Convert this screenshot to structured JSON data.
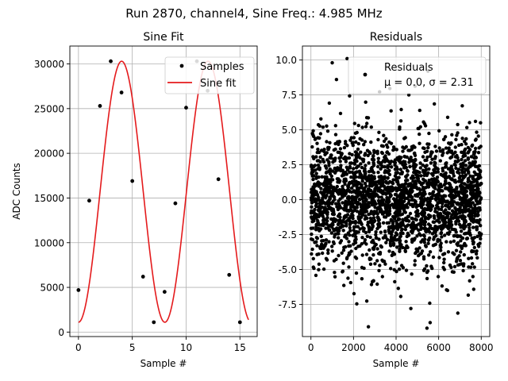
{
  "figure": {
    "suptitle": "Run 2870, channel4, Sine Freq.: 4.985 MHz"
  },
  "chart_data": [
    {
      "type": "line",
      "title": "Sine Fit",
      "xlabel": "Sample #",
      "ylabel": "ADC Counts",
      "xlim": [
        -0.8,
        16.6
      ],
      "ylim": [
        -500,
        32000
      ],
      "xticks": [
        0,
        5,
        10,
        15
      ],
      "yticks": [
        0,
        5000,
        10000,
        15000,
        20000,
        25000,
        30000
      ],
      "grid": true,
      "legend_position": "top-right",
      "series": [
        {
          "name": "Samples",
          "style": "markers",
          "color": "#000000",
          "x": [
            0,
            1,
            2,
            3,
            4,
            5,
            6,
            7,
            8,
            9,
            10,
            11,
            12,
            13,
            14,
            15
          ],
          "y": [
            4700,
            14700,
            25300,
            30300,
            26800,
            16900,
            6200,
            1100,
            4500,
            14400,
            25100,
            30300,
            27000,
            17100,
            6400,
            1100
          ]
        },
        {
          "name": "Sine fit",
          "style": "line",
          "color": "#e41a1c",
          "function": {
            "offset": 15700,
            "amplitude": 14600,
            "frequency_cycles_per_sample": 0.1246,
            "phase_rad": -1.57,
            "x_range": [
              0,
              15.8
            ]
          }
        }
      ]
    },
    {
      "type": "scatter",
      "title": "Residuals",
      "xlabel": "Sample #",
      "ylabel": "",
      "xlim": [
        -400,
        8400
      ],
      "ylim": [
        -9.8,
        11.0
      ],
      "xticks": [
        0,
        2000,
        4000,
        6000,
        8000
      ],
      "yticks": [
        -7.5,
        -5.0,
        -2.5,
        0.0,
        2.5,
        5.0,
        7.5,
        10.0
      ],
      "grid": true,
      "legend_position": "top-right",
      "series": [
        {
          "name": "Residuals",
          "legend_line2": "μ = 0.0, σ = 2.31",
          "color": "#000000",
          "n_points": 8000,
          "mean": 0.0,
          "std": 2.31,
          "x_range": [
            0,
            8000
          ],
          "notable_points": [
            {
              "x": 1000,
              "y": 9.8
            },
            {
              "x": 1200,
              "y": 8.6
            },
            {
              "x": 1700,
              "y": 10.1
            },
            {
              "x": 2700,
              "y": -9.1
            },
            {
              "x": 5500,
              "y": 9.2
            },
            {
              "x": 5600,
              "y": -8.8
            },
            {
              "x": 4600,
              "y": 7.5
            }
          ]
        }
      ]
    }
  ]
}
